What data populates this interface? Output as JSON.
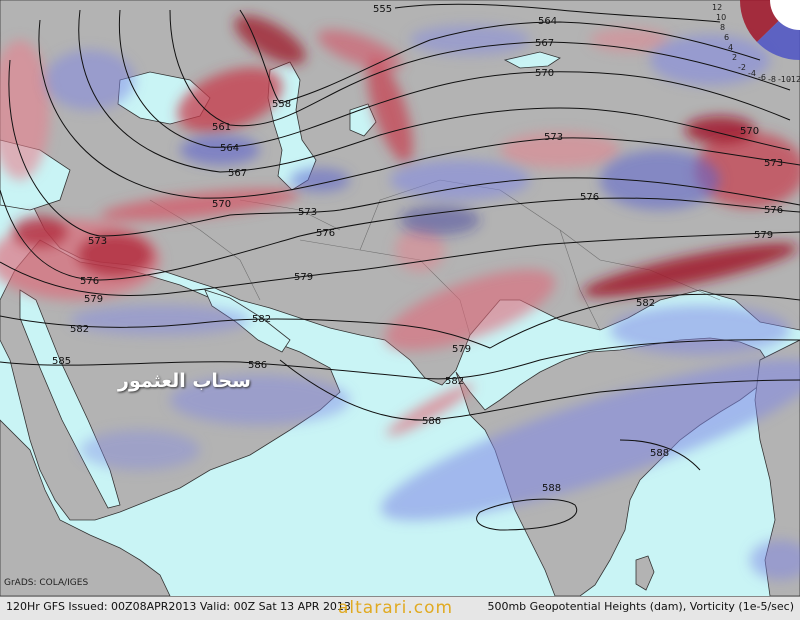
{
  "map": {
    "contours": [
      {
        "value": "555"
      },
      {
        "value": "558"
      },
      {
        "value": "561"
      },
      {
        "value": "564"
      },
      {
        "value": "567"
      },
      {
        "value": "570"
      },
      {
        "value": "573"
      },
      {
        "value": "576"
      },
      {
        "value": "579"
      },
      {
        "value": "582"
      },
      {
        "value": "585"
      },
      {
        "value": "586"
      },
      {
        "value": "588"
      }
    ],
    "colors": {
      "ocean": "#c9f4f5",
      "land": "#b3b3b3",
      "vorticity_positive": "#e06878",
      "vorticity_positive_strong": "#8a1020",
      "vorticity_negative": "#7f86e6",
      "vorticity_negative_strong": "#2a2a9a"
    },
    "legend": {
      "ticks": [
        "12",
        "10",
        "8",
        "6",
        "4",
        "2",
        "-2",
        "-4",
        "-6",
        "-8",
        "-10",
        "-12"
      ]
    },
    "arabic_caption": "سحاب العثمور",
    "credit": "GrADS: COLA/IGES",
    "watermark": "altarari.com"
  },
  "footer": {
    "left_text": "120Hr GFS Issued: 00Z08APR2013 Valid: 00Z Sat 13 APR 2013",
    "right_text": "500mb Geopotential Heights (dam), Vorticity (1e-5/sec)"
  }
}
